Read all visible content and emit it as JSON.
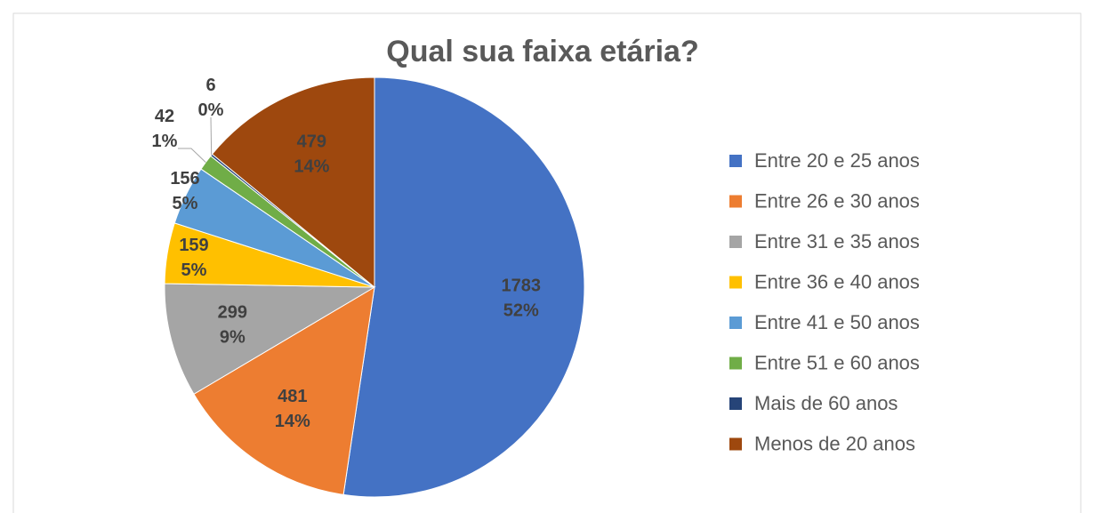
{
  "chart_data": {
    "type": "pie",
    "title": "Qual sua faixa etária?",
    "categories": [
      "Entre 20 e 25 anos",
      "Entre 26 e 30 anos",
      "Entre 31 e 35 anos",
      "Entre 36 e 40 anos",
      "Entre 41 e 50 anos",
      "Entre 51 e 60 anos",
      "Mais de 60 anos",
      "Menos de 20 anos"
    ],
    "values": [
      1783,
      481,
      299,
      159,
      156,
      42,
      6,
      479
    ],
    "percent_labels": [
      "52%",
      "14%",
      "9%",
      "5%",
      "5%",
      "1%",
      "0%",
      "14%"
    ],
    "colors": [
      "#4472c4",
      "#ed7d31",
      "#a5a5a5",
      "#ffc000",
      "#5b9bd5",
      "#70ad47",
      "#264478",
      "#9e480e"
    ],
    "legend": "right"
  }
}
